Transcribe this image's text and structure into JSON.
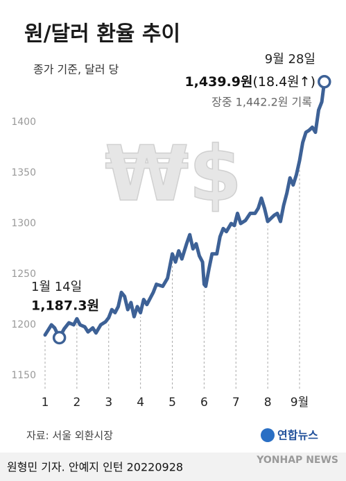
{
  "chart_data": {
    "type": "line",
    "title": "원/달러 환율 추이",
    "subtitle": "종가 기준, 달러 당",
    "decoration": "₩$",
    "annotations": {
      "start_date": "1월 14일",
      "end_date": "9월 28일",
      "end_change": "(18.4원↑)",
      "end_intraday": "장중 1,442.2원 기록"
    },
    "source": "자료: 서울 외환시장",
    "logo": "연합뉴스",
    "credit": "원형민 기자. 안예지 인턴  20220928",
    "watermark": "YONHAP NEWS",
    "color": "#3d6196",
    "x": [
      1.0,
      1.1,
      1.2,
      1.3,
      1.45,
      1.6,
      1.75,
      1.9,
      2.0,
      2.1,
      2.25,
      2.35,
      2.5,
      2.6,
      2.75,
      2.9,
      3.0,
      3.1,
      3.2,
      3.3,
      3.4,
      3.5,
      3.6,
      3.7,
      3.8,
      3.9,
      4.0,
      4.1,
      4.2,
      4.4,
      4.5,
      4.7,
      4.85,
      5.0,
      5.1,
      5.2,
      5.3,
      5.45,
      5.55,
      5.65,
      5.75,
      5.85,
      5.95,
      6.0,
      6.05,
      6.15,
      6.25,
      6.4,
      6.5,
      6.6,
      6.7,
      6.85,
      6.95,
      7.05,
      7.15,
      7.3,
      7.45,
      7.6,
      7.7,
      7.8,
      7.9,
      8.0,
      8.1,
      8.2,
      8.3,
      8.4,
      8.5,
      8.6,
      8.7,
      8.8,
      8.9,
      9.0,
      9.1,
      9.2,
      9.3,
      9.4,
      9.5,
      9.6,
      9.7,
      9.78
    ],
    "values": [
      1190,
      1195,
      1200,
      1197,
      1187.3,
      1196,
      1202,
      1200,
      1206,
      1200,
      1198,
      1193,
      1197,
      1192,
      1200,
      1203,
      1207,
      1215,
      1212,
      1218,
      1232,
      1228,
      1215,
      1222,
      1208,
      1218,
      1212,
      1225,
      1220,
      1232,
      1240,
      1238,
      1246,
      1270,
      1262,
      1273,
      1265,
      1280,
      1289,
      1275,
      1280,
      1268,
      1262,
      1240,
      1238,
      1255,
      1270,
      1270,
      1287,
      1295,
      1292,
      1300,
      1298,
      1310,
      1300,
      1303,
      1310,
      1310,
      1315,
      1325,
      1315,
      1302,
      1305,
      1308,
      1310,
      1302,
      1318,
      1330,
      1345,
      1338,
      1348,
      1362,
      1380,
      1390,
      1392,
      1395,
      1390,
      1412,
      1420,
      1439.9
    ],
    "value_labels": [
      null,
      null,
      null,
      null,
      "1,187.3원",
      null,
      null,
      null,
      null,
      null,
      null,
      null,
      null,
      null,
      null,
      null,
      null,
      null,
      null,
      null,
      null,
      null,
      null,
      null,
      null,
      null,
      null,
      null,
      null,
      null,
      null,
      null,
      null,
      null,
      null,
      null,
      null,
      null,
      null,
      null,
      null,
      null,
      null,
      null,
      null,
      null,
      null,
      null,
      null,
      null,
      null,
      null,
      null,
      null,
      null,
      null,
      null,
      null,
      null,
      null,
      null,
      null,
      null,
      null,
      null,
      null,
      null,
      null,
      null,
      null,
      null,
      null,
      null,
      null,
      null,
      null,
      null,
      null,
      null,
      "1,439.9원"
    ],
    "xlim": [
      0.9,
      9.9
    ],
    "xticks": [
      1,
      2,
      3,
      4,
      5,
      6,
      7,
      8,
      {
        "value": 9,
        "label": "9월"
      }
    ],
    "ylim": [
      1140,
      1450
    ],
    "yticks": [
      1150,
      1200,
      1250,
      1300,
      1350,
      1400
    ]
  }
}
